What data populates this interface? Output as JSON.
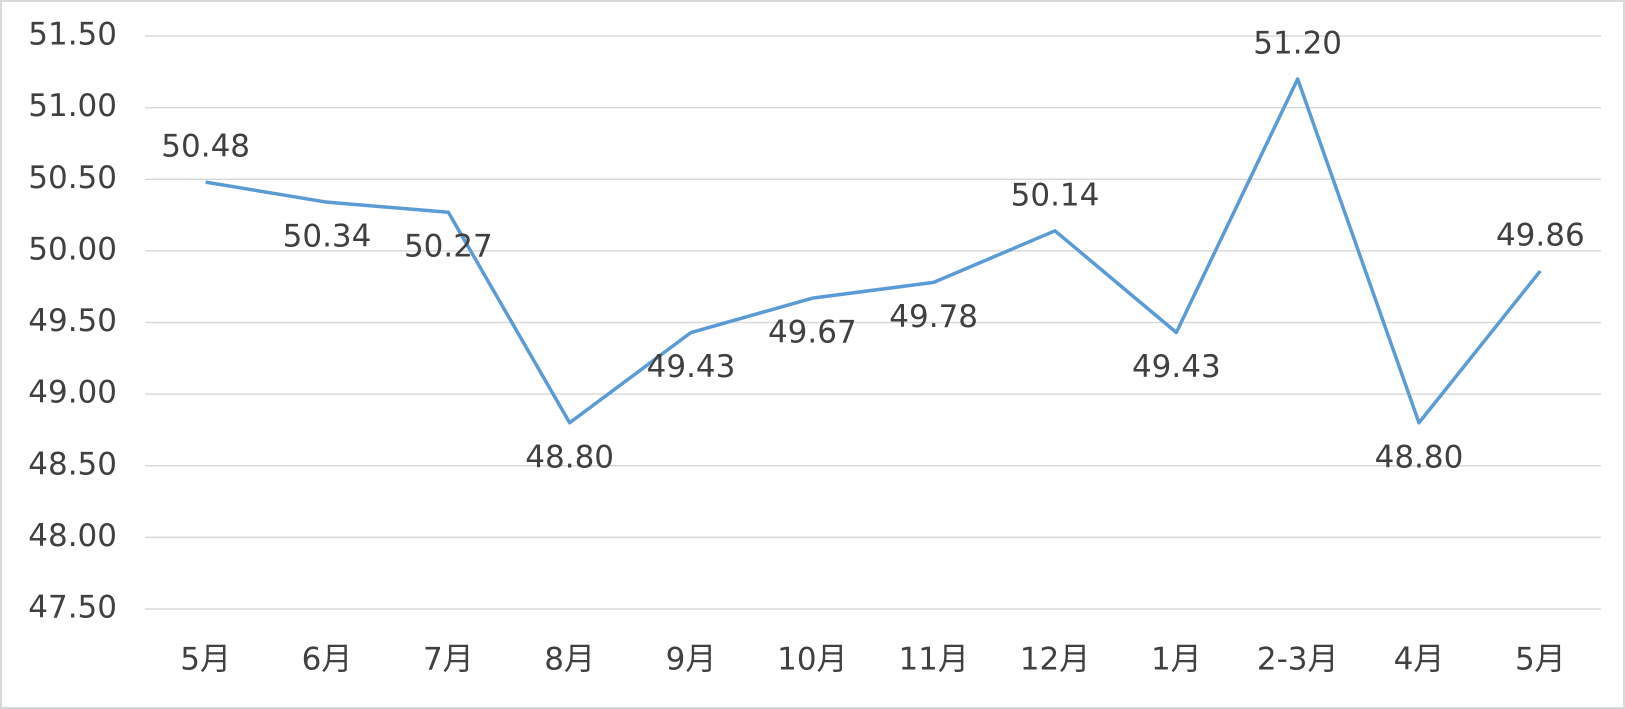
{
  "chart_data": {
    "type": "line",
    "categories": [
      "5月",
      "6月",
      "7月",
      "8月",
      "9月",
      "10月",
      "11月",
      "12月",
      "1月",
      "2-3月",
      "4月",
      "5月"
    ],
    "values": [
      50.48,
      50.34,
      50.27,
      48.8,
      49.43,
      49.67,
      49.78,
      50.14,
      49.43,
      51.2,
      48.8,
      49.86
    ],
    "value_labels": [
      "50.48",
      "50.34",
      "50.27",
      "48.80",
      "49.43",
      "49.67",
      "49.78",
      "50.14",
      "49.43",
      "51.20",
      "48.80",
      "49.86"
    ],
    "color": "#5b9bd5",
    "ylim": [
      47.5,
      51.5
    ],
    "yticks": [
      {
        "value": 47.5,
        "label": "47.50"
      },
      {
        "value": 48,
        "label": "48.00"
      },
      {
        "value": 48.5,
        "label": "48.50"
      },
      {
        "value": 49,
        "label": "49.00"
      },
      {
        "value": 49.5,
        "label": "49.50"
      },
      {
        "value": 50,
        "label": "50.00"
      },
      {
        "value": 50.5,
        "label": "50.50"
      },
      {
        "value": 51,
        "label": "51.00"
      },
      {
        "value": 51.5,
        "label": "51.50"
      }
    ],
    "grid": true
  }
}
